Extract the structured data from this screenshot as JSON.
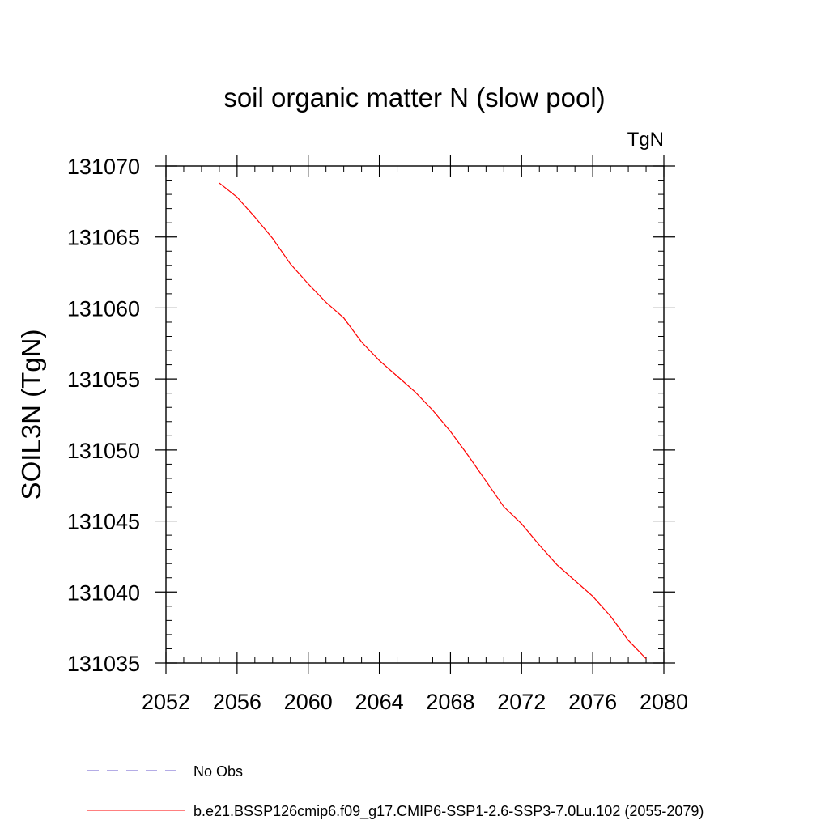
{
  "chart_data": {
    "type": "line",
    "title": "soil organic matter N (slow pool)",
    "units_label": "TgN",
    "xlabel": "",
    "ylabel": "SOIL3N  (TgN)",
    "xlim": [
      2052,
      2080
    ],
    "ylim": [
      131035,
      131070
    ],
    "x_ticks": [
      2052,
      2056,
      2060,
      2064,
      2068,
      2072,
      2076,
      2080
    ],
    "y_ticks": [
      131035,
      131040,
      131045,
      131050,
      131055,
      131060,
      131065,
      131070
    ],
    "x_minor_step": 1,
    "y_minor_step": 1,
    "grid": false,
    "legend_position": "bottom",
    "series": [
      {
        "name": "b.e21.BSSP126cmip6.f09_g17.CMIP6-SSP1-2.6-SSP3-7.0Lu.102 (2055-2079)",
        "color": "#ff0000",
        "dash": "solid",
        "x": [
          2055,
          2056,
          2057,
          2058,
          2059,
          2060,
          2061,
          2062,
          2063,
          2064,
          2065,
          2066,
          2067,
          2068,
          2069,
          2070,
          2071,
          2072,
          2073,
          2074,
          2075,
          2076,
          2077,
          2078,
          2079
        ],
        "y": [
          131068.8,
          131067.8,
          131066.4,
          131064.9,
          131063.1,
          131061.7,
          131060.4,
          131059.3,
          131057.6,
          131056.3,
          131055.2,
          131054.1,
          131052.8,
          131051.3,
          131049.6,
          131047.8,
          131046.0,
          131044.8,
          131043.3,
          131041.9,
          131040.8,
          131039.7,
          131038.3,
          131036.6,
          131035.3
        ]
      }
    ],
    "legend": [
      {
        "label": "No Obs",
        "color": "#6a5acd",
        "dash": "dashed"
      },
      {
        "label": "b.e21.BSSP126cmip6.f09_g17.CMIP6-SSP1-2.6-SSP3-7.0Lu.102 (2055-2079)",
        "color": "#ff0000",
        "dash": "solid"
      }
    ]
  }
}
